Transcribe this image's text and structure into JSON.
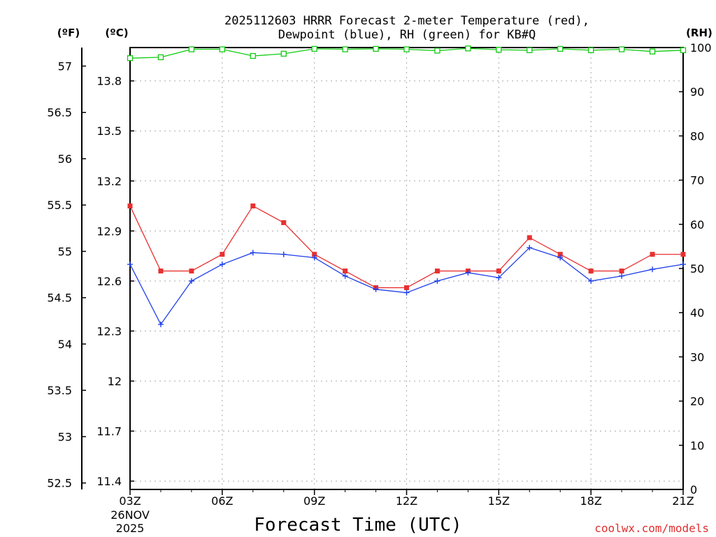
{
  "chart_data": {
    "type": "line",
    "title_line1": "2025112603 HRRR Forecast 2-meter Temperature (red),",
    "title_line2": "Dewpoint (blue), RH (green) for KB#Q",
    "xlabel": "Forecast Time (UTC)",
    "credit": "coolwx.com/models",
    "date_line1": "26NOV",
    "date_line2": "2025",
    "units": {
      "fahrenheit": "(ºF)",
      "celsius": "(ºC)",
      "rh": "(RH)"
    },
    "x_hours": [
      0,
      1,
      2,
      3,
      4,
      5,
      6,
      7,
      8,
      9,
      10,
      11,
      12,
      13,
      14,
      15,
      16,
      17,
      18
    ],
    "x_ticks": [
      {
        "hour": 0,
        "label": "03Z"
      },
      {
        "hour": 3,
        "label": "06Z"
      },
      {
        "hour": 6,
        "label": "09Z"
      },
      {
        "hour": 9,
        "label": "12Z"
      },
      {
        "hour": 12,
        "label": "15Z"
      },
      {
        "hour": 15,
        "label": "18Z"
      },
      {
        "hour": 18,
        "label": "21Z"
      }
    ],
    "ylim_c": [
      11.35,
      14.0
    ],
    "ylim_rh": [
      0,
      100
    ],
    "yticks_c": [
      "11.4",
      "11.7",
      "12",
      "12.3",
      "12.6",
      "12.9",
      "13.2",
      "13.5",
      "13.8"
    ],
    "yticks_f": [
      "52.5",
      "53",
      "53.5",
      "54",
      "54.5",
      "55",
      "55.5",
      "56",
      "56.5",
      "57"
    ],
    "yticks_rh": [
      "0",
      "10",
      "20",
      "30",
      "40",
      "50",
      "60",
      "70",
      "80",
      "90",
      "100"
    ],
    "series": [
      {
        "name": "Temperature",
        "color": "#e83030",
        "marker": "square-filled",
        "values": [
          13.05,
          12.66,
          12.66,
          12.76,
          13.05,
          12.95,
          12.76,
          12.66,
          12.56,
          12.56,
          12.66,
          12.66,
          12.66,
          12.86,
          12.76,
          12.66,
          12.66,
          12.76,
          12.76
        ]
      },
      {
        "name": "Dewpoint",
        "color": "#2040e8",
        "marker": "plus",
        "values": [
          12.7,
          12.34,
          12.6,
          12.7,
          12.77,
          12.76,
          12.74,
          12.63,
          12.55,
          12.53,
          12.6,
          12.65,
          12.62,
          12.8,
          12.74,
          12.6,
          12.63,
          12.67,
          12.7
        ]
      },
      {
        "name": "RH",
        "color": "#10cc10",
        "marker": "square-open",
        "values": [
          97.6,
          97.8,
          99.6,
          99.6,
          98.1,
          98.6,
          99.7,
          99.6,
          99.7,
          99.6,
          99.3,
          99.8,
          99.5,
          99.4,
          99.7,
          99.4,
          99.6,
          99.1,
          99.4
        ]
      }
    ]
  }
}
